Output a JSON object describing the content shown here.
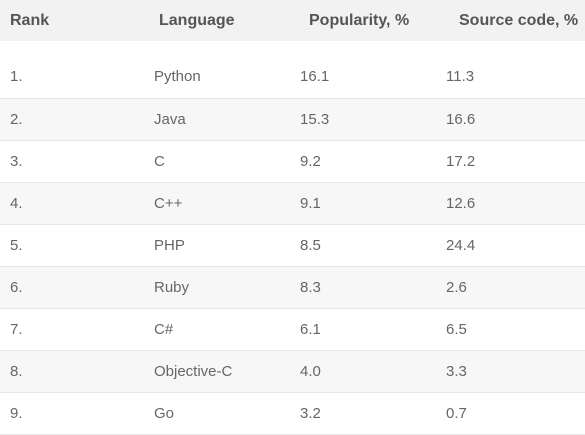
{
  "table": {
    "headers": {
      "rank": "Rank",
      "language": "Language",
      "popularity": "Popularity, %",
      "source_code": "Source code, %"
    },
    "rows": [
      {
        "rank": "1.",
        "language": "Python",
        "popularity": "16.1",
        "source_code": "11.3"
      },
      {
        "rank": "2.",
        "language": "Java",
        "popularity": "15.3",
        "source_code": "16.6"
      },
      {
        "rank": "3.",
        "language": "C",
        "popularity": "9.2",
        "source_code": "17.2"
      },
      {
        "rank": "4.",
        "language": "C++",
        "popularity": "9.1",
        "source_code": "12.6"
      },
      {
        "rank": "5.",
        "language": "PHP",
        "popularity": "8.5",
        "source_code": "24.4"
      },
      {
        "rank": "6.",
        "language": "Ruby",
        "popularity": "8.3",
        "source_code": "2.6"
      },
      {
        "rank": "7.",
        "language": "C#",
        "popularity": "6.1",
        "source_code": "6.5"
      },
      {
        "rank": "8.",
        "language": "Objective-C",
        "popularity": "4.0",
        "source_code": "3.3"
      },
      {
        "rank": "9.",
        "language": "Go",
        "popularity": "3.2",
        "source_code": "0.7"
      }
    ]
  },
  "colors": {
    "header_bg": "#f2f2f2",
    "shaded_row_bg": "#f7f7f7",
    "text": "#666666"
  }
}
